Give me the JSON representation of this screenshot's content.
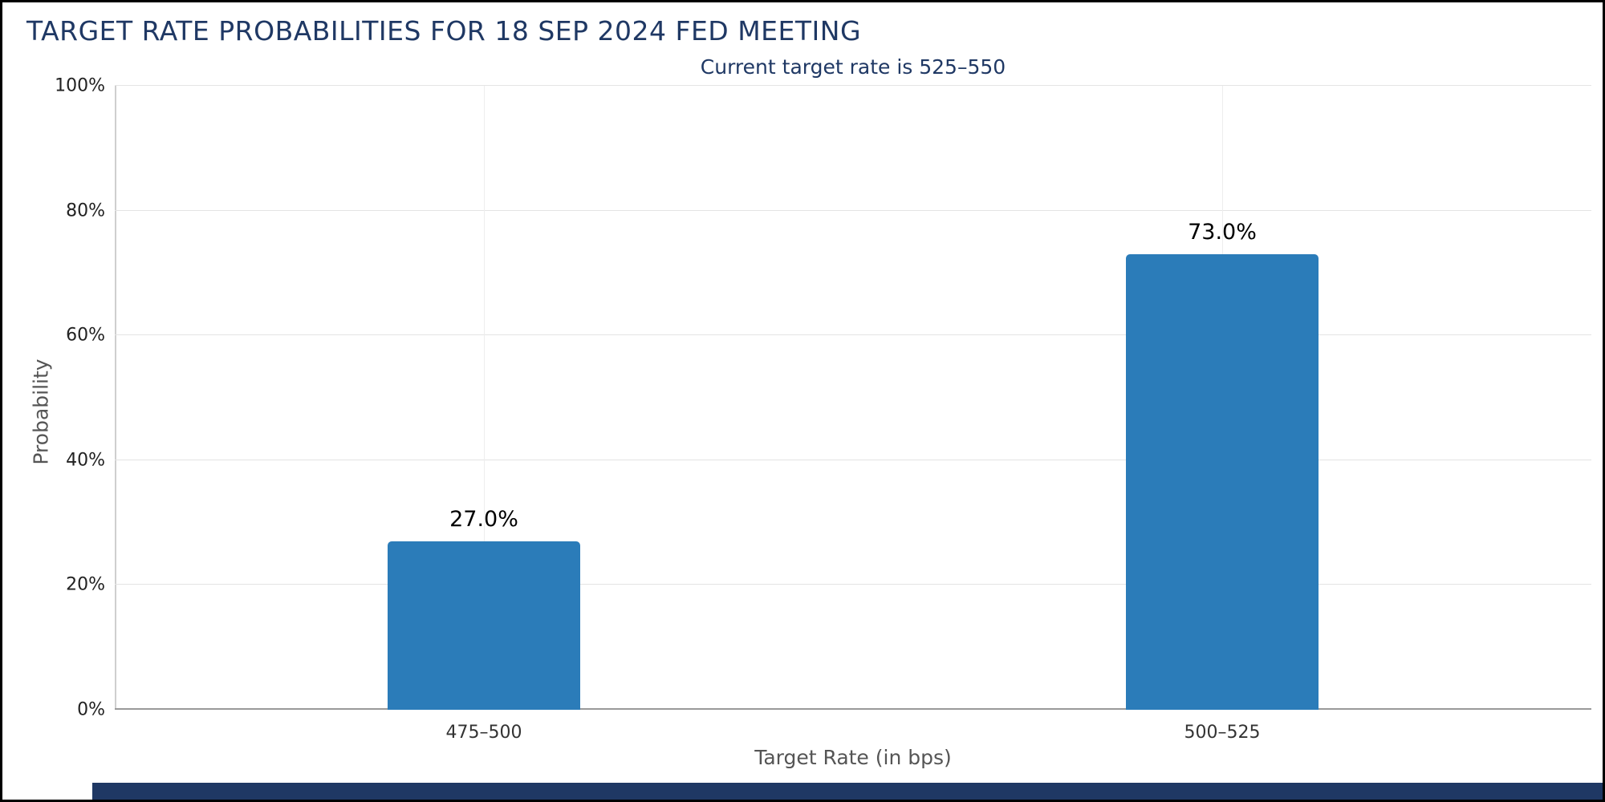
{
  "title": "TARGET RATE PROBABILITIES FOR 18 SEP 2024 FED MEETING",
  "subtitle": "Current target rate is 525–550",
  "chart_data": {
    "type": "bar",
    "title": "TARGET RATE PROBABILITIES FOR 18 SEP 2024 FED MEETING",
    "subtitle": "Current target rate is 525–550",
    "categories": [
      "475–500",
      "500–525"
    ],
    "values": [
      27.0,
      73.0
    ],
    "value_labels": [
      "27.0%",
      "73.0%"
    ],
    "xlabel": "Target Rate (in bps)",
    "ylabel": "Probability",
    "ylim": [
      0,
      100
    ],
    "yticks": [
      0,
      20,
      40,
      60,
      80,
      100
    ],
    "ytick_labels": [
      "0%",
      "20%",
      "40%",
      "60%",
      "80%",
      "100%"
    ],
    "bar_color": "#2b7cb9",
    "grid": true,
    "legend": false
  },
  "colors": {
    "title_navy": "#1f3864",
    "bar_blue": "#2b7cb9",
    "gridline": "#e4e4e4",
    "footer_navy": "#1f3864"
  }
}
